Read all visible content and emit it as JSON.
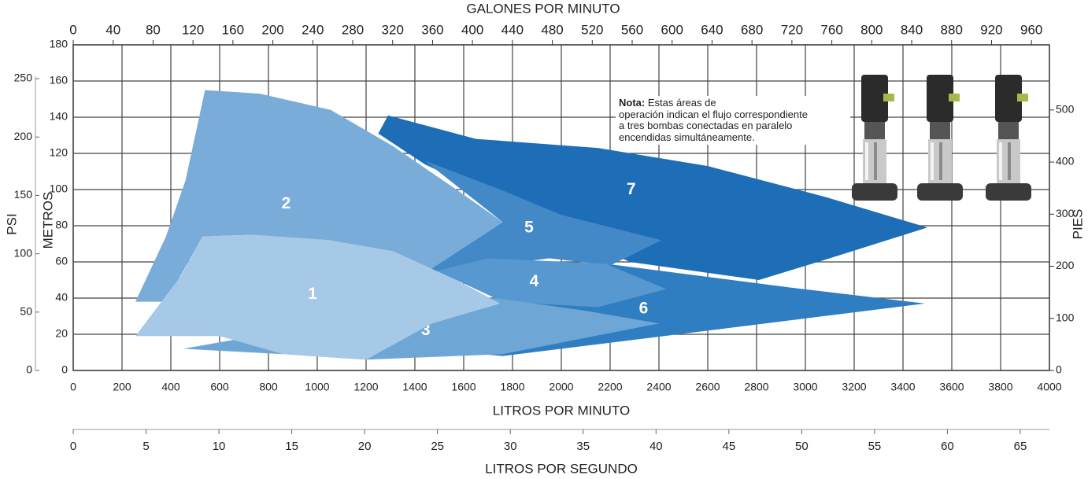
{
  "chart_data": {
    "type": "area",
    "xlabel": "LITROS POR MINUTO",
    "xlim": [
      0,
      4000
    ],
    "xticks": [
      0,
      200,
      400,
      600,
      800,
      1000,
      1200,
      1400,
      1600,
      1800,
      2000,
      2200,
      2400,
      2600,
      2800,
      3000,
      3200,
      3400,
      3600,
      3800,
      4000
    ],
    "x2label": "GALONES POR MINUTO",
    "x2lim": [
      0,
      978
    ],
    "x2ticks": [
      0,
      40,
      80,
      120,
      160,
      200,
      240,
      280,
      320,
      360,
      400,
      440,
      480,
      520,
      560,
      600,
      640,
      680,
      720,
      760,
      800,
      840,
      880,
      920,
      960
    ],
    "x3label": "LITROS POR SEGUNDO",
    "x3lim": [
      0,
      67
    ],
    "x3ticks": [
      0,
      5,
      10,
      15,
      20,
      25,
      30,
      35,
      40,
      45,
      50,
      55,
      60,
      65
    ],
    "ylabel": "METROS",
    "ylim": [
      0,
      180
    ],
    "yticks": [
      0,
      20,
      40,
      60,
      80,
      100,
      120,
      140,
      160,
      180
    ],
    "y2label": "PIES",
    "y2lim": [
      0,
      625
    ],
    "y2ticks": [
      0,
      100,
      200,
      300,
      400,
      500
    ],
    "y3label": "PSI",
    "y3lim": [
      0,
      279
    ],
    "y3ticks": [
      0,
      50,
      100,
      150,
      200,
      250
    ],
    "grid": true,
    "series": [
      {
        "name": "1",
        "color": "#a6c9e7",
        "x": [
          255,
          440,
          530,
          730,
          1050,
          1310,
          1570,
          1750,
          1470,
          1200,
          860,
          600
        ],
        "values": [
          19,
          52,
          74,
          75,
          72,
          66,
          50,
          37,
          26,
          6,
          9,
          19
        ]
      },
      {
        "name": "2",
        "color": "#79acd9",
        "x": [
          255,
          380,
          460,
          540,
          765,
          1055,
          1310,
          1570,
          1760,
          1430,
          1050,
          730,
          530,
          380
        ],
        "values": [
          38,
          74,
          105,
          155,
          153,
          144,
          124,
          100,
          82,
          53,
          72,
          75,
          74,
          38
        ]
      },
      {
        "name": "3",
        "color": "#6ea7d6",
        "x": [
          450,
          1000,
          1500,
          1730,
          2100,
          2400,
          1760,
          1200,
          860
        ],
        "values": [
          12,
          25,
          38,
          40,
          33,
          26,
          9,
          6,
          9
        ]
      },
      {
        "name": "4",
        "color": "#5698cf",
        "x": [
          1430,
          1700,
          2180,
          2430,
          2150,
          1760,
          1570
        ],
        "values": [
          53,
          62,
          59,
          45,
          35,
          38,
          50
        ]
      },
      {
        "name": "5",
        "color": "#4389c8",
        "x": [
          1440,
          1750,
          2000,
          2410,
          2200,
          1950,
          1430,
          1760
        ],
        "values": [
          116,
          100,
          86,
          72,
          58,
          62,
          53,
          82
        ]
      },
      {
        "name": "6",
        "color": "#2f7ec2",
        "x": [
          1500,
          1760,
          2600,
          3490,
          2930,
          2180,
          1900
        ],
        "values": [
          11,
          8,
          22,
          37,
          46,
          59,
          55
        ]
      },
      {
        "name": "7",
        "color": "#1e6eb7",
        "x": [
          1250,
          1290,
          1650,
          2150,
          2600,
          3080,
          3500,
          3100,
          2810,
          2280,
          1440
        ],
        "values": [
          131,
          141,
          128,
          123,
          113,
          96,
          79,
          62,
          50,
          60,
          114
        ]
      }
    ]
  },
  "note": {
    "label": "Nota:",
    "lines": [
      "Estas áreas de",
      "operación indican el flujo correspondiente",
      "a tres bombas conectadas en paralelo",
      "encendidas simultáneamente."
    ]
  }
}
